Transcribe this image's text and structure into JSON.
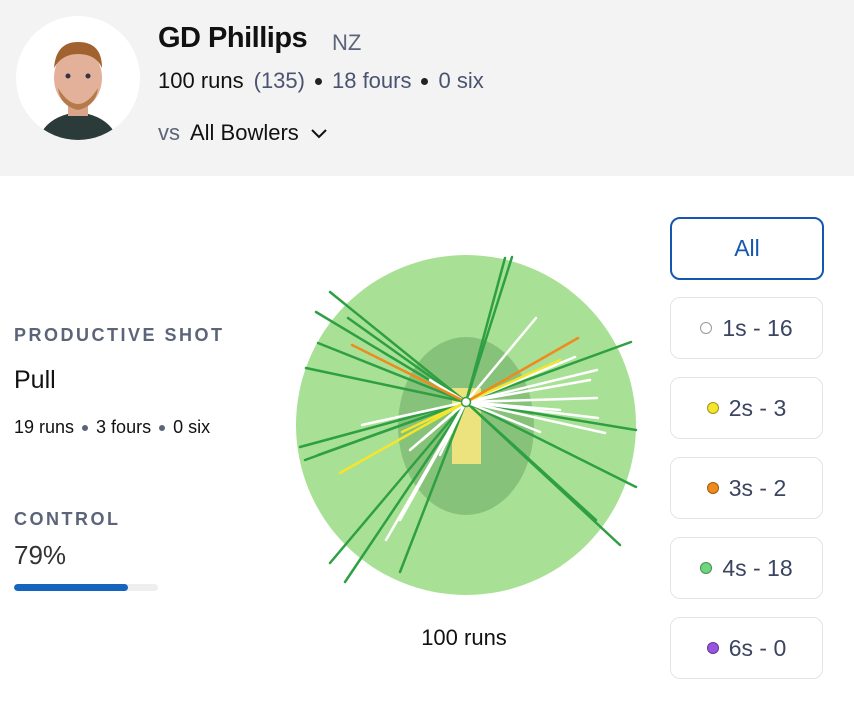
{
  "player": {
    "name": "GD Phillips",
    "country": "NZ",
    "runs": "100 runs",
    "balls": "(135)",
    "fours": "18 fours",
    "sixes": "0 six",
    "vs_prefix": "vs",
    "vs_value": "All Bowlers"
  },
  "productive_shot": {
    "caption": "PRODUCTIVE SHOT",
    "shot": "Pull",
    "runs": "19 runs",
    "fours": "3 fours",
    "sixes": "0 six"
  },
  "control": {
    "caption": "CONTROL",
    "label": "79%",
    "value": 79
  },
  "wagon_wheel": {
    "total": "100 runs"
  },
  "filters": [
    {
      "label": "All"
    },
    {
      "label": "1s - 16",
      "color": "#ffffff"
    },
    {
      "label": "2s - 3",
      "color": "#f5e52c"
    },
    {
      "label": "3s - 2",
      "color": "#f08a1c"
    },
    {
      "label": "4s - 18",
      "color": "#6ed67f"
    },
    {
      "label": "6s - 0",
      "color": "#9a55e0"
    }
  ]
}
